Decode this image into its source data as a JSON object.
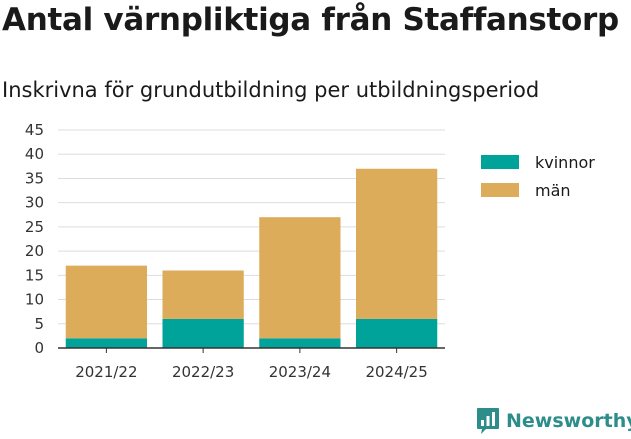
{
  "header": {
    "title": "Antal värnpliktiga från Staffanstorp",
    "subtitle": "Inskrivna för grundutbildning per utbildningsperiod"
  },
  "brand": {
    "name": "Newsworthy",
    "icon": "newsworthy-logo-icon"
  },
  "colors": {
    "kvinnor": "#00a39a",
    "man": "#dcac5a",
    "grid": "#dddddd",
    "axis": "#333333"
  },
  "chart_data": {
    "type": "bar",
    "stacked": true,
    "categories": [
      "2021/22",
      "2022/23",
      "2023/24",
      "2024/25"
    ],
    "series": [
      {
        "name": "kvinnor",
        "values": [
          2,
          6,
          2,
          6
        ]
      },
      {
        "name": "män",
        "values": [
          15,
          10,
          25,
          31
        ]
      }
    ],
    "ylim": [
      0,
      45
    ],
    "yticks": [
      "0",
      "5",
      "10",
      "15",
      "20",
      "25",
      "30",
      "35",
      "40",
      "45"
    ],
    "grid": true,
    "legend_position": "right"
  }
}
